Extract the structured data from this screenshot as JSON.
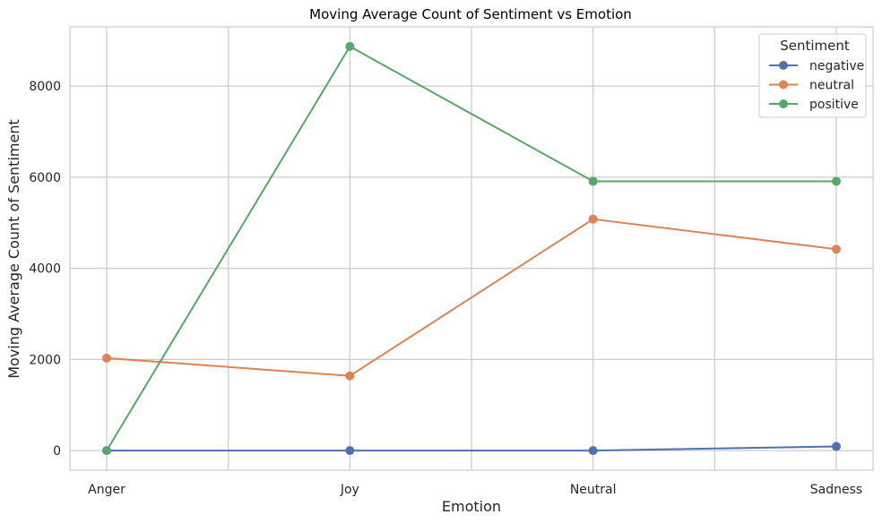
{
  "chart_data": {
    "type": "line",
    "title": "Moving Average Count of Sentiment vs Emotion",
    "xlabel": "Emotion",
    "ylabel": "Moving Average Count of Sentiment",
    "categories": [
      "Anger",
      "Joy",
      "Neutral",
      "Sadness"
    ],
    "ylim": [
      -430,
      9300
    ],
    "yticks": [
      0,
      2000,
      4000,
      6000,
      8000
    ],
    "grid": true,
    "legend": {
      "title": "Sentiment",
      "placement": "top-right"
    },
    "markers": "circle",
    "series": [
      {
        "name": "negative",
        "color": "#4c72b0",
        "values": [
          0,
          0,
          0,
          90
        ]
      },
      {
        "name": "neutral",
        "color": "#dd8452",
        "values": [
          2030,
          1640,
          5080,
          4420
        ]
      },
      {
        "name": "positive",
        "color": "#55a868",
        "values": [
          0,
          8870,
          5910,
          5910
        ]
      }
    ]
  }
}
